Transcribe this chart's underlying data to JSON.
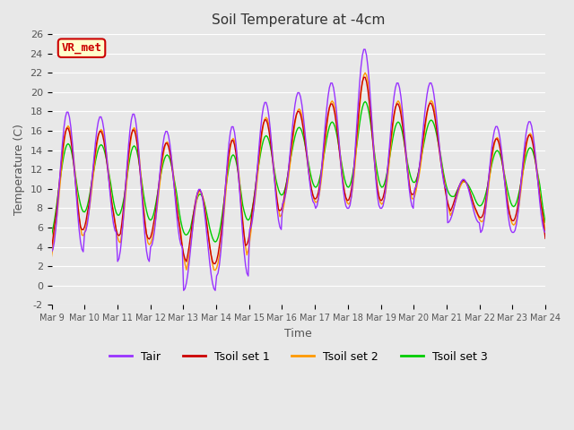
{
  "title": "Soil Temperature at -4cm",
  "xlabel": "Time",
  "ylabel": "Temperature (C)",
  "ylim": [
    -2,
    26
  ],
  "yticks": [
    -2,
    0,
    2,
    4,
    6,
    8,
    10,
    12,
    14,
    16,
    18,
    20,
    22,
    24,
    26
  ],
  "x_labels": [
    "Mar 9",
    "Mar 10",
    "Mar 11",
    "Mar 12",
    "Mar 13",
    "Mar 14",
    "Mar 15",
    "Mar 16",
    "Mar 17",
    "Mar 18",
    "Mar 19",
    "Mar 20",
    "Mar 21",
    "Mar 22",
    "Mar 23",
    "Mar 24"
  ],
  "colors": {
    "Tair": "#9933ff",
    "Tsoil1": "#cc0000",
    "Tsoil2": "#ff9900",
    "Tsoil3": "#00cc00"
  },
  "background_color": "#e8e8e8",
  "plot_bg_color": "#e8e8e8",
  "grid_color": "#ffffff",
  "annotation_text": "VR_met",
  "annotation_bg": "#ffffcc",
  "annotation_border": "#cc0000",
  "legend_entries": [
    "Tair",
    "Tsoil set 1",
    "Tsoil set 2",
    "Tsoil set 3"
  ]
}
